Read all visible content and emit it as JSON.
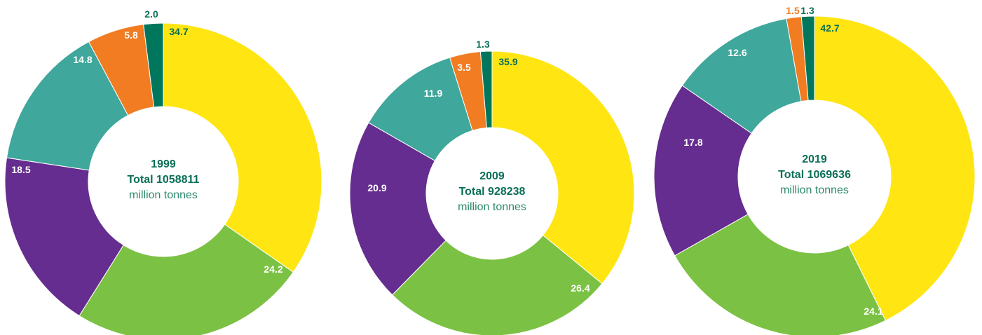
{
  "colors": {
    "yellow": "#FFE512",
    "green": "#7BC143",
    "purple": "#652D8F",
    "teal": "#3FA79B",
    "orange": "#F27C21",
    "dark_green": "#00775C",
    "text_dark_green": "#0A6E57",
    "text_center": "#2E8A6E",
    "text_white": "#FFFFFF"
  },
  "chart_data": [
    {
      "type": "pie",
      "center_year": "1999",
      "center_total": "Total 1058811",
      "center_unit": "million tonnes",
      "values": [
        34.7,
        24.2,
        18.5,
        14.8,
        5.8,
        2.0
      ],
      "value_labels": [
        "34.7",
        "24.2",
        "18.5",
        "14.8",
        "5.8",
        "2.0"
      ],
      "slice_colors": [
        "yellow",
        "green",
        "purple",
        "teal",
        "orange",
        "dark_green"
      ]
    },
    {
      "type": "pie",
      "center_year": "2009",
      "center_total": "Total 928238",
      "center_unit": "million tonnes",
      "values": [
        35.9,
        26.4,
        20.9,
        11.9,
        3.5,
        1.3
      ],
      "value_labels": [
        "35.9",
        "26.4",
        "20.9",
        "11.9",
        "3.5",
        "1.3"
      ],
      "slice_colors": [
        "yellow",
        "green",
        "purple",
        "teal",
        "orange",
        "dark_green"
      ]
    },
    {
      "type": "pie",
      "center_year": "2019",
      "center_total": "Total 1069636",
      "center_unit": "million tonnes",
      "values": [
        42.7,
        24.1,
        17.8,
        12.6,
        1.5,
        1.3
      ],
      "value_labels": [
        "42.7",
        "24.1",
        "17.8",
        "12.6",
        "1.5",
        "1.3"
      ],
      "slice_colors": [
        "yellow",
        "green",
        "purple",
        "teal",
        "orange",
        "dark_green"
      ]
    }
  ]
}
